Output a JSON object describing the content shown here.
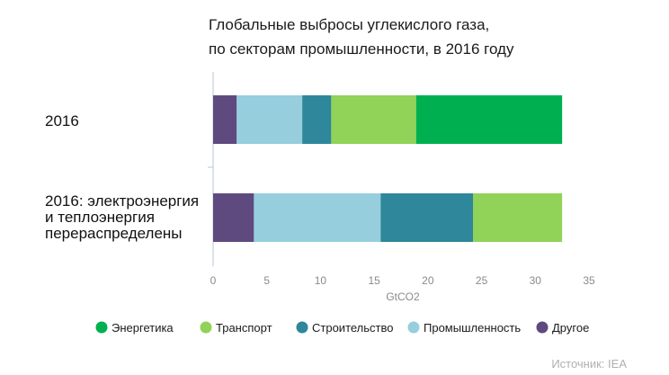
{
  "chart_data": {
    "type": "bar",
    "orientation": "horizontal",
    "stacked": true,
    "title_lines": [
      "Глобальные выбросы углекислого газа,",
      "по секторам промышленности, в 2016 году"
    ],
    "categories": [
      [
        "2016"
      ],
      [
        "2016: электроэнергия",
        "и теплоэнергия",
        "перераспределены"
      ]
    ],
    "xlabel": "GtCO2",
    "xlim": [
      0,
      35
    ],
    "xticks": [
      0,
      5,
      10,
      15,
      20,
      25,
      30,
      35
    ],
    "series": [
      {
        "name": "Другое",
        "color": "#5e4a7f",
        "values": [
          2.2,
          3.8
        ]
      },
      {
        "name": "Промышленность",
        "color": "#96cedd",
        "values": [
          6.1,
          11.8
        ]
      },
      {
        "name": "Строительство",
        "color": "#2e879a",
        "values": [
          2.7,
          8.6
        ]
      },
      {
        "name": "Транспорт",
        "color": "#91d258",
        "values": [
          7.9,
          8.3
        ]
      },
      {
        "name": "Энергетика",
        "color": "#00b050",
        "values": [
          13.6,
          0
        ]
      }
    ],
    "legend_order": [
      "Энергетика",
      "Транспорт",
      "Строительство",
      "Промышленность",
      "Другое"
    ],
    "source": "Источник: IEA"
  }
}
